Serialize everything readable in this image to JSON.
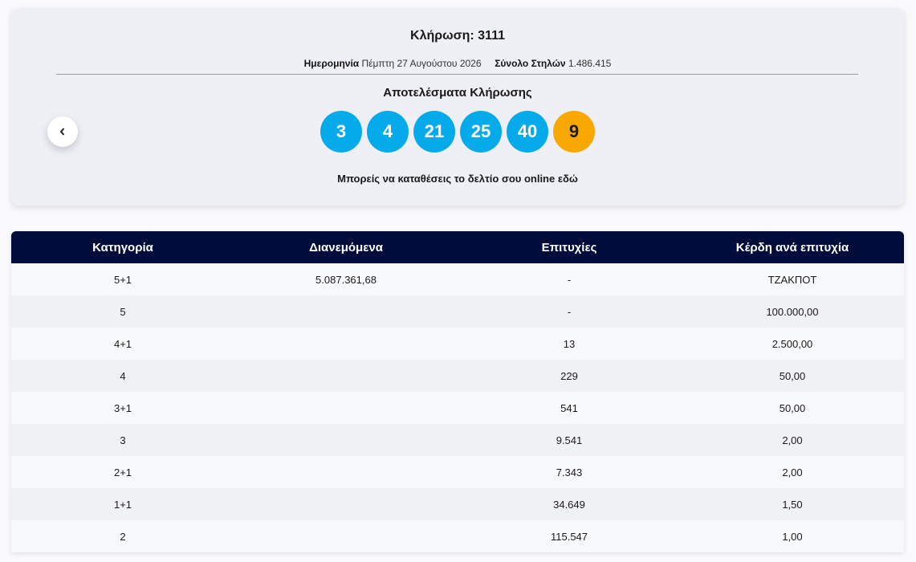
{
  "draw": {
    "title": "Κλήρωση: 3111",
    "date_label": "Ημερομηνία",
    "date": "Πέμπτη 27 Αυγούστου 2026",
    "columns_label": "Σύνολο Στηλών",
    "columns": "1.486.415",
    "results_title": "Αποτελέσματα Κλήρωσης",
    "numbers": [
      "3",
      "4",
      "21",
      "25",
      "40"
    ],
    "bonus": "9",
    "online_note": "Μπορείς να καταθέσεις το δελτίο σου online εδώ"
  },
  "table": {
    "headers": [
      "Κατηγορία",
      "Διανεμόμενα",
      "Επιτυχίες",
      "Κέρδη ανά επιτυχία"
    ],
    "rows": [
      {
        "category": "5+1",
        "distributed": "5.087.361,68",
        "winners": "-",
        "prize": "ΤΖΑΚΠΟΤ"
      },
      {
        "category": "5",
        "winners": "-",
        "prize": "100.000,00"
      },
      {
        "category": "4+1",
        "winners": "13",
        "prize": "2.500,00"
      },
      {
        "category": "4",
        "winners": "229",
        "prize": "50,00"
      },
      {
        "category": "3+1",
        "winners": "541",
        "prize": "50,00"
      },
      {
        "category": "3",
        "winners": "9.541",
        "prize": "2,00"
      },
      {
        "category": "2+1",
        "winners": "7.343",
        "prize": "2,00"
      },
      {
        "category": "1+1",
        "winners": "34.649",
        "prize": "1,50"
      },
      {
        "category": "2",
        "winners": "115.547",
        "prize": "1,00"
      }
    ]
  }
}
